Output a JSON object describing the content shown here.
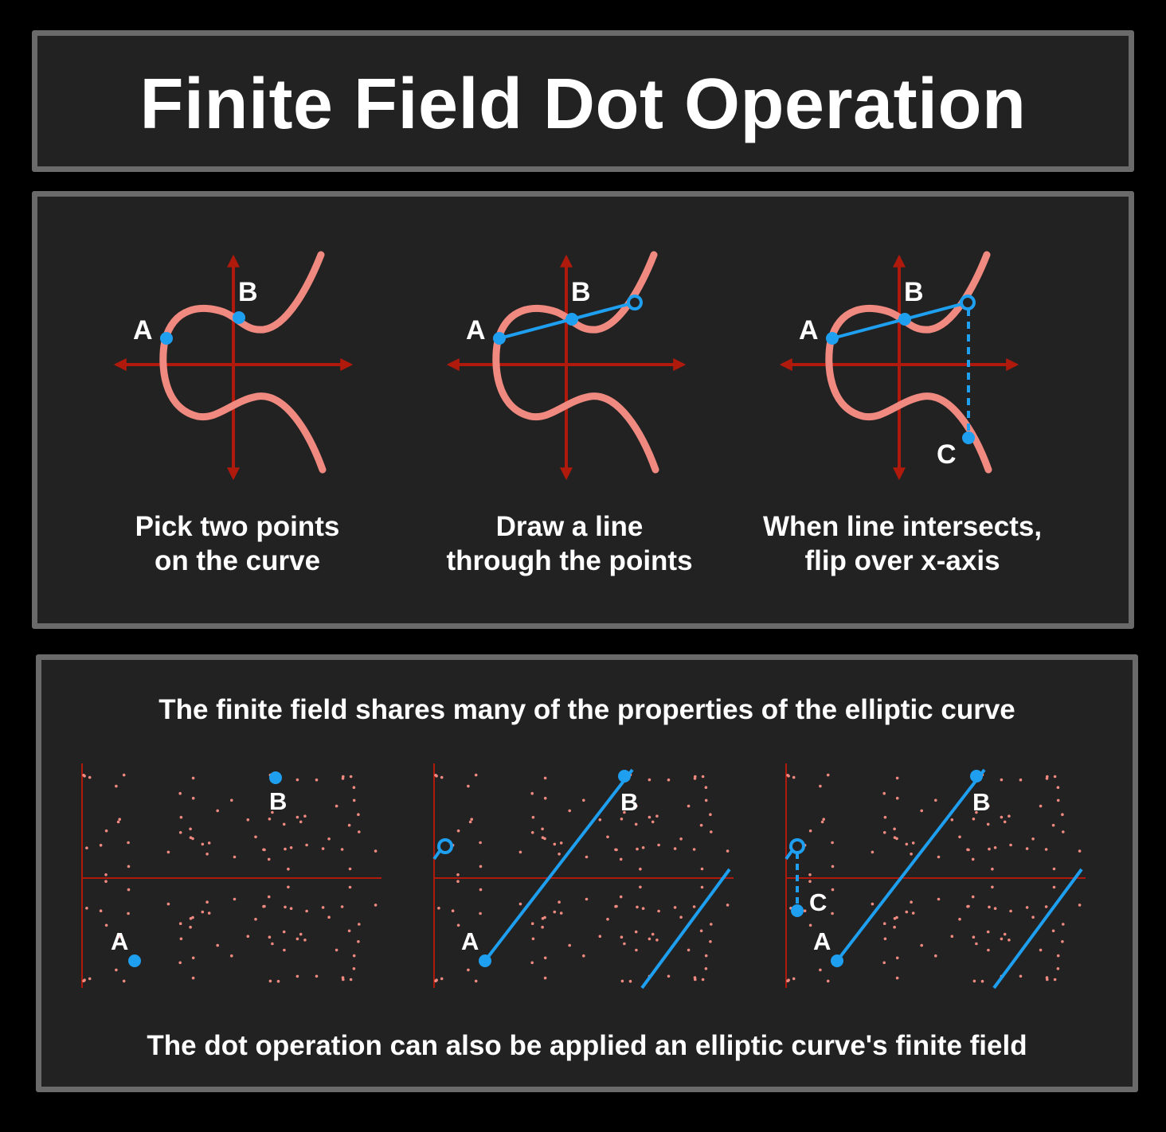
{
  "title": "Finite Field Dot Operation",
  "steps": [
    {
      "caption": "Pick two points\non the curve",
      "points": [
        "A",
        "B"
      ]
    },
    {
      "caption": "Draw a line\nthrough the points",
      "points": [
        "A",
        "B"
      ]
    },
    {
      "caption": "When line intersects,\nflip over x-axis",
      "points": [
        "A",
        "B",
        "C"
      ]
    }
  ],
  "field": {
    "intro": "The finite field shares many of the properties of the elliptic curve",
    "outro": "The dot operation can also be applied an elliptic curve's finite field",
    "plots": [
      {
        "points": [
          "A",
          "B"
        ]
      },
      {
        "points": [
          "A",
          "B"
        ]
      },
      {
        "points": [
          "A",
          "B",
          "C"
        ]
      }
    ]
  },
  "colors": {
    "background": "#000000",
    "panel": "#222222",
    "panel_border": "#6a6a6a",
    "axis": "#b01a0c",
    "curve": "#f08a80",
    "point": "#1e9ff0",
    "text": "#ffffff"
  }
}
